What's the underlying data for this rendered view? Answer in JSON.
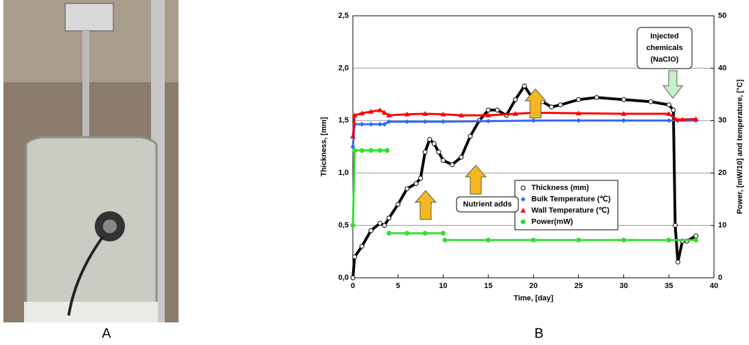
{
  "panels": {
    "left": "A",
    "right": "B"
  },
  "chart_data": {
    "type": "scatter",
    "xlabel": "Time, [day]",
    "ylabel": "Thickness, [mm]",
    "y2label": "Power, [mW/10] and temperature, [°C]",
    "xlim": [
      0,
      40
    ],
    "xticks": [
      0,
      5,
      10,
      15,
      20,
      25,
      30,
      35,
      40
    ],
    "ylim": [
      0,
      2.5
    ],
    "yticks": [
      {
        "value": 0,
        "label": "0,0"
      },
      {
        "value": 0.5,
        "label": "0,5"
      },
      {
        "value": 1,
        "label": "1,0"
      },
      {
        "value": 1.5,
        "label": "1,5"
      },
      {
        "value": 2,
        "label": "2,0"
      },
      {
        "value": 2.5,
        "label": "2,5"
      }
    ],
    "y2lim": [
      0,
      50
    ],
    "y2ticks": [
      0,
      10,
      20,
      30,
      40,
      50
    ],
    "grid": true,
    "series": [
      {
        "name": "Thickness (mm)",
        "color": "#000000",
        "axis": "y",
        "x": [
          0,
          0.2,
          1,
          2,
          3,
          3.5,
          4,
          5,
          6,
          7,
          7.5,
          8,
          8.5,
          9,
          9.5,
          10,
          11,
          12,
          13,
          14,
          15,
          16,
          17,
          18,
          19,
          20,
          21,
          22,
          23,
          25,
          27,
          30,
          33,
          35,
          35.5,
          35.7,
          36,
          36.5,
          37,
          38
        ],
        "values": [
          0,
          0.2,
          0.3,
          0.45,
          0.52,
          0.5,
          0.57,
          0.7,
          0.85,
          0.9,
          0.95,
          1.2,
          1.32,
          1.28,
          1.2,
          1.12,
          1.08,
          1.15,
          1.35,
          1.5,
          1.6,
          1.6,
          1.55,
          1.7,
          1.83,
          1.7,
          1.68,
          1.63,
          1.65,
          1.7,
          1.72,
          1.7,
          1.68,
          1.65,
          1.6,
          0.5,
          0.15,
          0.35,
          0.35,
          0.4
        ]
      },
      {
        "name": "Bulk Temperature (℃)",
        "color": "#3366ff",
        "axis": "y2",
        "x": [
          0,
          0.2,
          1,
          2,
          3,
          3.5,
          4,
          6,
          8,
          10,
          15,
          20,
          25,
          30,
          35,
          36,
          38
        ],
        "values": [
          25,
          29.3,
          29.3,
          29.3,
          29.3,
          29.3,
          29.8,
          29.8,
          29.8,
          29.8,
          29.9,
          30,
          30,
          30,
          30,
          30,
          30
        ]
      },
      {
        "name": "Wall Temperature (℃)",
        "color": "#ff0000",
        "axis": "y2",
        "x": [
          0,
          0.2,
          1,
          2,
          3,
          3.5,
          4,
          6,
          8,
          10,
          12,
          15,
          18,
          20,
          25,
          30,
          35,
          35.8,
          36.5,
          38
        ],
        "values": [
          27,
          31,
          31.4,
          31.7,
          32,
          31.5,
          31,
          31.2,
          31.3,
          31.2,
          31,
          31,
          31.3,
          31.5,
          31.4,
          31.3,
          31.3,
          30.2,
          30.2,
          30.3
        ]
      },
      {
        "name": "Power(mW)",
        "color": "#33dd33",
        "axis": "y2",
        "x": [
          0,
          0.2,
          1,
          2,
          3,
          3.8,
          3.9,
          4,
          6,
          8,
          10,
          10.1,
          10.2,
          15,
          20,
          25,
          30,
          35,
          38
        ],
        "values": [
          10,
          24.3,
          24.3,
          24.3,
          24.3,
          24.3,
          null,
          8.5,
          8.5,
          8.5,
          8.5,
          null,
          7.2,
          7.2,
          7.2,
          7.2,
          7.2,
          7.2,
          7.2
        ]
      }
    ],
    "annotations": [
      {
        "text": [
          "Injected",
          "chemicals",
          "(NaClO)"
        ]
      },
      {
        "text": "Nutrient adds"
      }
    ]
  }
}
